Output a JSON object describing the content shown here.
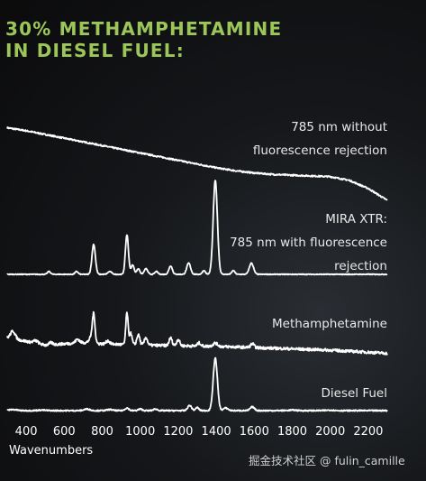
{
  "chart_data": {
    "type": "line",
    "title_lines": [
      "30% METHAMPHETAMINE",
      "IN DIESEL FUEL:"
    ],
    "xlabel": "Wavenumbers",
    "xlim": [
      300,
      2300
    ],
    "xticks": [
      400,
      600,
      800,
      1000,
      1200,
      1400,
      1600,
      1800,
      2000,
      2200
    ],
    "grid": false,
    "legend": "none",
    "series": [
      {
        "label_lines": [
          "785 nm without",
          "fluorescence rejection"
        ],
        "points": [
          [
            300,
            0.98
          ],
          [
            400,
            0.94
          ],
          [
            500,
            0.89
          ],
          [
            600,
            0.84
          ],
          [
            700,
            0.79
          ],
          [
            800,
            0.74
          ],
          [
            900,
            0.69
          ],
          [
            1000,
            0.64
          ],
          [
            1100,
            0.59
          ],
          [
            1200,
            0.54
          ],
          [
            1300,
            0.49
          ],
          [
            1400,
            0.44
          ],
          [
            1500,
            0.4
          ],
          [
            1600,
            0.37
          ],
          [
            1700,
            0.35
          ],
          [
            1800,
            0.34
          ],
          [
            1900,
            0.33
          ],
          [
            2000,
            0.32
          ],
          [
            2100,
            0.27
          ],
          [
            2200,
            0.16
          ],
          [
            2300,
            0.0
          ]
        ],
        "noise": 0.01
      },
      {
        "label_lines": [
          "MIRA XTR:",
          "785 nm with fluorescence",
          "rejection"
        ],
        "peaks": [
          [
            520,
            0.03,
            8
          ],
          [
            665,
            0.03,
            8
          ],
          [
            755,
            0.32,
            9
          ],
          [
            840,
            0.03,
            10
          ],
          [
            930,
            0.42,
            8
          ],
          [
            960,
            0.1,
            8
          ],
          [
            990,
            0.06,
            8
          ],
          [
            1030,
            0.06,
            9
          ],
          [
            1085,
            0.03,
            8
          ],
          [
            1160,
            0.09,
            9
          ],
          [
            1255,
            0.12,
            10
          ],
          [
            1335,
            0.04,
            8
          ],
          [
            1395,
            1.0,
            11
          ],
          [
            1490,
            0.04,
            8
          ],
          [
            1585,
            0.12,
            11
          ]
        ],
        "noise": 0.004
      },
      {
        "label_lines": [
          "Methamphetamine"
        ],
        "baseline": [
          [
            300,
            0.2
          ],
          [
            500,
            0.08
          ],
          [
            700,
            0.12
          ],
          [
            800,
            0.1
          ],
          [
            1000,
            0.08
          ],
          [
            1200,
            0.07
          ],
          [
            1400,
            0.06
          ],
          [
            1600,
            0.04
          ],
          [
            1800,
            0.02
          ],
          [
            2000,
            0.0
          ],
          [
            2300,
            -0.05
          ]
        ],
        "peaks": [
          [
            330,
            0.12,
            12
          ],
          [
            450,
            0.04,
            12
          ],
          [
            530,
            0.03,
            10
          ],
          [
            670,
            0.06,
            10
          ],
          [
            740,
            0.08,
            10
          ],
          [
            755,
            0.45,
            7
          ],
          [
            830,
            0.05,
            9
          ],
          [
            930,
            0.5,
            6
          ],
          [
            950,
            0.18,
            7
          ],
          [
            990,
            0.16,
            8
          ],
          [
            1030,
            0.12,
            8
          ],
          [
            1160,
            0.12,
            8
          ],
          [
            1200,
            0.1,
            8
          ],
          [
            1310,
            0.05,
            8
          ],
          [
            1395,
            0.05,
            12
          ],
          [
            1590,
            0.06,
            9
          ]
        ],
        "noise": 0.022
      },
      {
        "label_lines": [
          "Diesel Fuel"
        ],
        "peaks": [
          [
            330,
            0.02,
            20
          ],
          [
            480,
            0.01,
            20
          ],
          [
            720,
            0.03,
            15
          ],
          [
            840,
            0.02,
            14
          ],
          [
            930,
            0.05,
            10
          ],
          [
            1000,
            0.03,
            10
          ],
          [
            1080,
            0.03,
            10
          ],
          [
            1260,
            0.1,
            10
          ],
          [
            1300,
            0.06,
            8
          ],
          [
            1395,
            1.0,
            11
          ],
          [
            1450,
            0.05,
            12
          ],
          [
            1590,
            0.07,
            11
          ],
          [
            1800,
            0.01,
            20
          ],
          [
            2000,
            0.01,
            20
          ]
        ],
        "noise": 0.012
      }
    ]
  },
  "watermark": "掘金技术社区 @ fulin_camille"
}
